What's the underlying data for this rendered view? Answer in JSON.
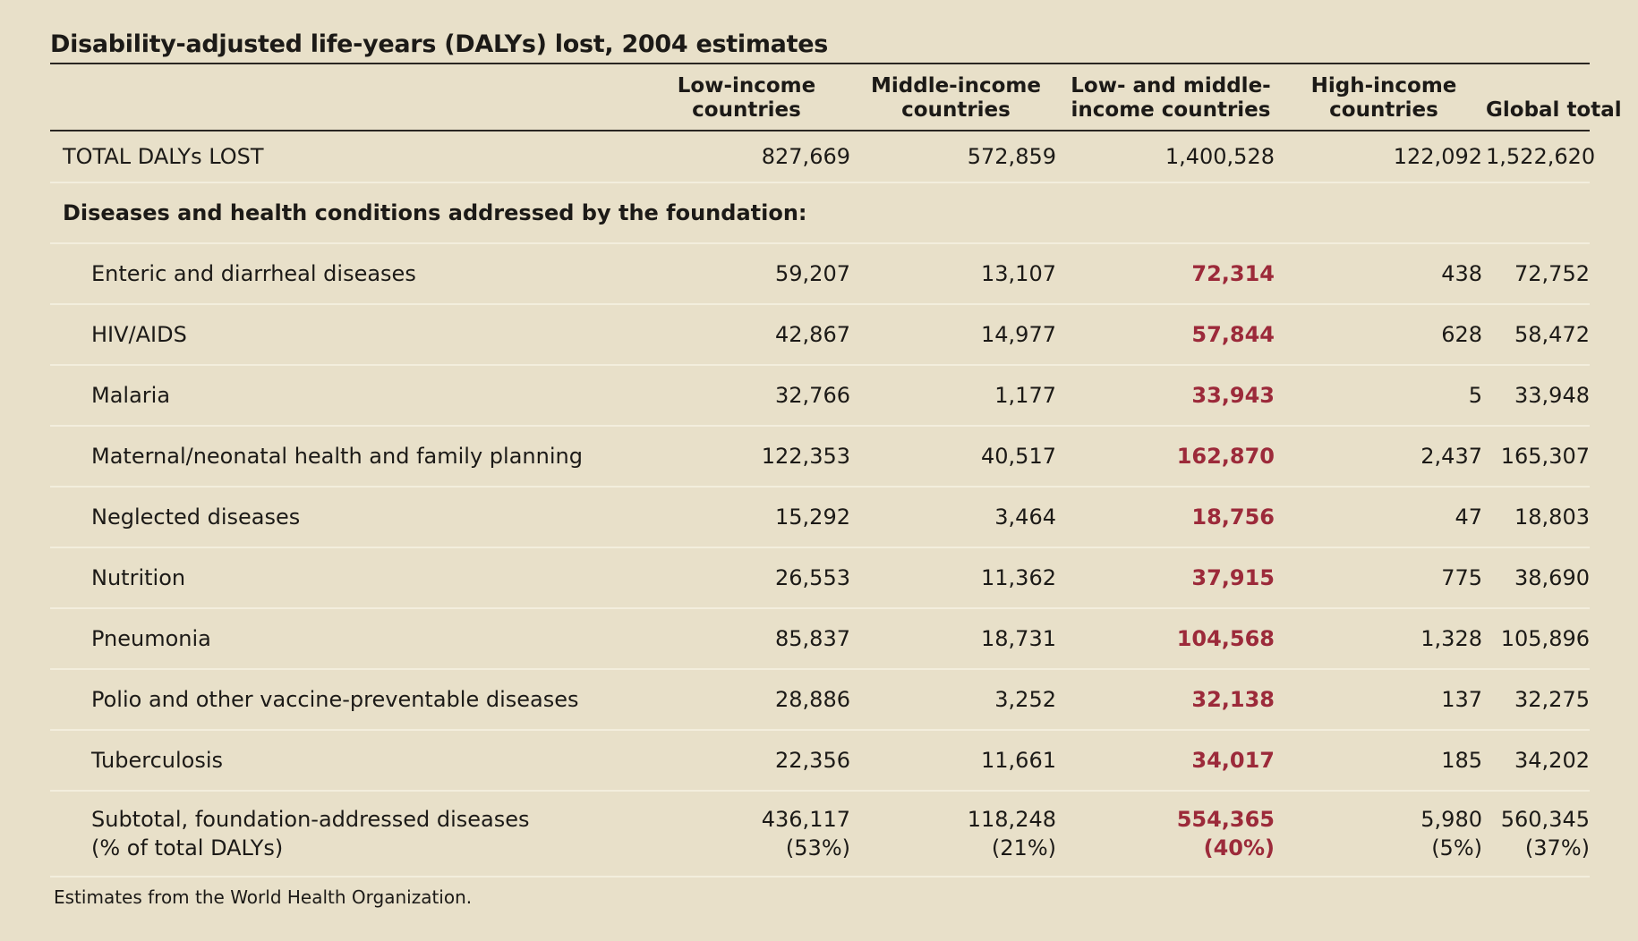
{
  "title": "Disability-adjusted life-years (DALYs) lost, 2004 estimates",
  "accent_color": "#9c2a3a",
  "columns": [
    {
      "line1": "Low-income",
      "line2": "countries"
    },
    {
      "line1": "Middle-income",
      "line2": "countries"
    },
    {
      "line1": "Low- and middle-",
      "line2": "income countries"
    },
    {
      "line1": "High-income",
      "line2": "countries"
    },
    {
      "line1": "",
      "line2": "Global total"
    }
  ],
  "total": {
    "label": "TOTAL DALYs LOST",
    "values": [
      "827,669",
      "572,859",
      "1,400,528",
      "122,092",
      "1,522,620"
    ]
  },
  "section_heading": "Diseases and health conditions addressed by the foundation:",
  "rows": [
    {
      "label": "Enteric and diarrheal diseases",
      "values": [
        "59,207",
        "13,107",
        "72,314",
        "438",
        "72,752"
      ]
    },
    {
      "label": "HIV/AIDS",
      "values": [
        "42,867",
        "14,977",
        "57,844",
        "628",
        "58,472"
      ]
    },
    {
      "label": "Malaria",
      "values": [
        "32,766",
        "1,177",
        "33,943",
        "5",
        "33,948"
      ]
    },
    {
      "label": "Maternal/neonatal health and family planning",
      "values": [
        "122,353",
        "40,517",
        "162,870",
        "2,437",
        "165,307"
      ]
    },
    {
      "label": "Neglected diseases",
      "values": [
        "15,292",
        "3,464",
        "18,756",
        "47",
        "18,803"
      ]
    },
    {
      "label": "Nutrition",
      "values": [
        "26,553",
        "11,362",
        "37,915",
        "775",
        "38,690"
      ]
    },
    {
      "label": "Pneumonia",
      "values": [
        "85,837",
        "18,731",
        "104,568",
        "1,328",
        "105,896"
      ]
    },
    {
      "label": "Polio and other vaccine-preventable diseases",
      "values": [
        "28,886",
        "3,252",
        "32,138",
        "137",
        "32,275"
      ]
    },
    {
      "label": "Tuberculosis",
      "values": [
        "22,356",
        "11,661",
        "34,017",
        "185",
        "34,202"
      ]
    }
  ],
  "subtotal": {
    "label_line1": "Subtotal, foundation-addressed diseases",
    "label_line2": "(% of total DALYs)",
    "values": [
      "436,117",
      "118,248",
      "554,365",
      "5,980",
      "560,345"
    ],
    "percents": [
      "(53%)",
      "(21%)",
      "(40%)",
      "(5%)",
      "(37%)"
    ]
  },
  "footnote": "Estimates from the World Health Organization."
}
